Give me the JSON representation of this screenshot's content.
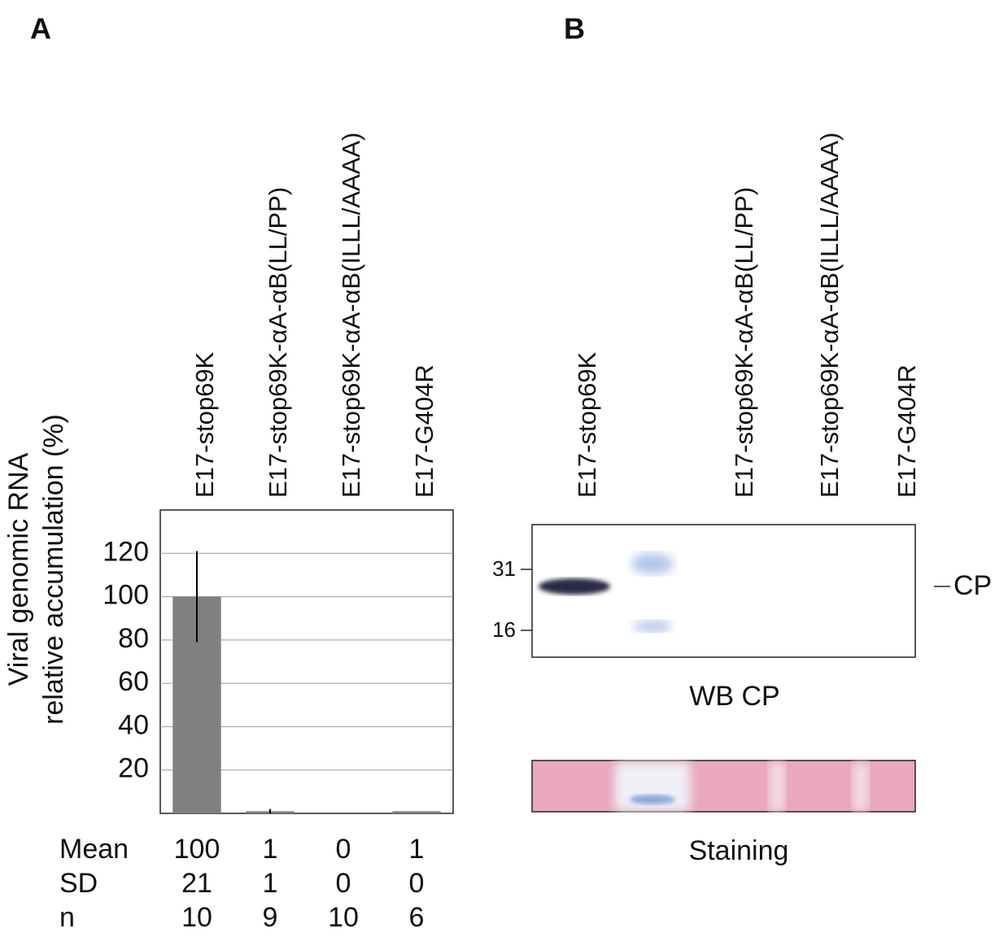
{
  "chart_data": {
    "type": "bar",
    "panel": "A",
    "ylabel": [
      "Viral genomic RNA",
      "relative accumulation (%)"
    ],
    "categories": [
      "E17-stop69K",
      "E17-stop69K-αA-αB(LL/PP)",
      "E17-stop69K-αA-αB(ILLL/AAAA)",
      "E17-G404R"
    ],
    "values": [
      100,
      1,
      0,
      1
    ],
    "sd": [
      21,
      1,
      0,
      0
    ],
    "n": [
      10,
      9,
      10,
      6
    ],
    "row_labels": [
      "Mean",
      "SD",
      "n"
    ],
    "color": "#808080",
    "ylim": [
      0,
      140
    ],
    "yticks": [
      20,
      40,
      60,
      80,
      100,
      120
    ],
    "grid": true
  },
  "blot": {
    "panel": "B",
    "lanes": [
      "E17-stop69K",
      "E17-stop69K-αA-αB(LL/PP)",
      "E17-stop69K-αA-αB(ILLL/AAAA)",
      "E17-G404R"
    ],
    "markers": [
      "31",
      "16"
    ],
    "band_label": "CP",
    "wb_caption": "WB CP",
    "stain_caption": "Staining"
  }
}
